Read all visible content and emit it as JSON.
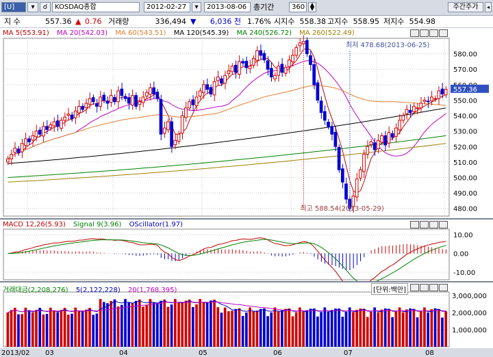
{
  "toolbar": {
    "code_prefix": "[U]",
    "search_icon": "search-icon",
    "stock_name": "KOSDAQ종합",
    "date_from": "2012-02-27",
    "date_to": "2013-08-06",
    "period_label": "총기간",
    "period_value": "360",
    "right_button": "주간주가"
  },
  "quote": {
    "label": "지 수",
    "price": "557.36",
    "change_arrow": "▲",
    "change": "0.76",
    "volume_label": "거래량",
    "volume": "336,494",
    "vol_change_arrow": "▼",
    "vol_change": "6,036 천",
    "pct": "1.76%",
    "open_label": "시지수",
    "open": "558.38",
    "high_label": "고지수",
    "high": "558.95",
    "low_label": "저지수",
    "low": "554.98"
  },
  "price_panel": {
    "legend": [
      {
        "text": "MA 5(553.91)",
        "color": "#c00000"
      },
      {
        "text": "MA 20(542.03)",
        "color": "#c000c0"
      },
      {
        "text": "MA 60(543.51)",
        "color": "#e08030"
      },
      {
        "text": "MA 120(545.39)",
        "color": "#000000"
      },
      {
        "text": "MA 240(526.72)",
        "color": "#008000"
      },
      {
        "text": "MA 260(522.49)",
        "color": "#a08000"
      }
    ],
    "y_ticks": [
      "580.00",
      "570.00",
      "560.00",
      "550.00",
      "540.00",
      "530.00",
      "520.00",
      "510.00",
      "500.00",
      "490.00",
      "480.00"
    ],
    "current_label": "557.36",
    "annotation_high": "최저 478.68(2013-06-25)",
    "annotation_low": "최고 588.54(2013-05-29)"
  },
  "macd_panel": {
    "legend": [
      {
        "text": "MACD 12,26(5.93)",
        "color": "#c00000"
      },
      {
        "text": "Signal 9(3.96)",
        "color": "#008000"
      },
      {
        "text": "OScillator(1.97)",
        "color": "#0000c0"
      }
    ],
    "y_ticks": [
      "10.00",
      "0.00",
      "-10.00"
    ]
  },
  "volume_panel": {
    "legend": [
      {
        "text": "거래대금(2,208,276)",
        "color": "#008000"
      },
      {
        "text": "5(2,122,228)",
        "color": "#0000c0"
      },
      {
        "text": "20(1,768,395)",
        "color": "#c000c0"
      }
    ],
    "unit_label": "[단위:백만]",
    "y_ticks": [
      "3,000,000",
      "2,000,000",
      "1,000,000"
    ]
  },
  "x_axis": {
    "labels": [
      "2013/02",
      "03",
      "04",
      "05",
      "06",
      "07",
      "08"
    ]
  },
  "chart_data": [
    {
      "type": "candlestick",
      "title": "",
      "ylim": [
        475,
        590
      ],
      "closes": [
        512,
        515,
        519,
        516,
        522,
        525,
        523,
        527,
        530,
        528,
        533,
        531,
        534,
        536,
        533,
        537,
        539,
        541,
        538,
        543,
        546,
        544,
        548,
        551,
        549,
        546,
        552,
        550,
        548,
        553,
        549,
        556,
        553,
        551,
        548,
        553,
        546,
        549,
        552,
        555,
        558,
        554,
        551,
        528,
        532,
        536,
        520,
        524,
        528,
        540,
        545,
        549,
        547,
        552,
        556,
        560,
        557,
        554,
        562,
        565,
        561,
        566,
        569,
        572,
        568,
        575,
        574,
        571,
        572,
        577,
        582,
        579,
        576,
        570,
        565,
        566,
        572,
        568,
        571,
        576,
        579,
        584,
        587,
        588,
        580,
        573,
        560,
        550,
        542,
        537,
        533,
        528,
        520,
        505,
        497,
        486,
        480,
        488,
        499,
        505,
        515,
        520,
        523,
        518,
        524,
        527,
        521,
        529,
        526,
        532,
        537,
        540,
        544,
        542,
        546,
        545,
        548,
        550,
        549,
        552,
        551,
        556,
        554,
        557
      ]
    },
    {
      "type": "line",
      "title": "",
      "series": [
        {
          "name": "MACD 12,26"
        },
        {
          "name": "Signal 9"
        },
        {
          "name": "OScillator"
        }
      ],
      "ylim": [
        -14,
        13
      ]
    },
    {
      "type": "bar",
      "title": "",
      "series": [
        {
          "name": "거래대금"
        },
        {
          "name": "5"
        },
        {
          "name": "20"
        }
      ],
      "ylim": [
        0,
        3200000
      ]
    }
  ]
}
